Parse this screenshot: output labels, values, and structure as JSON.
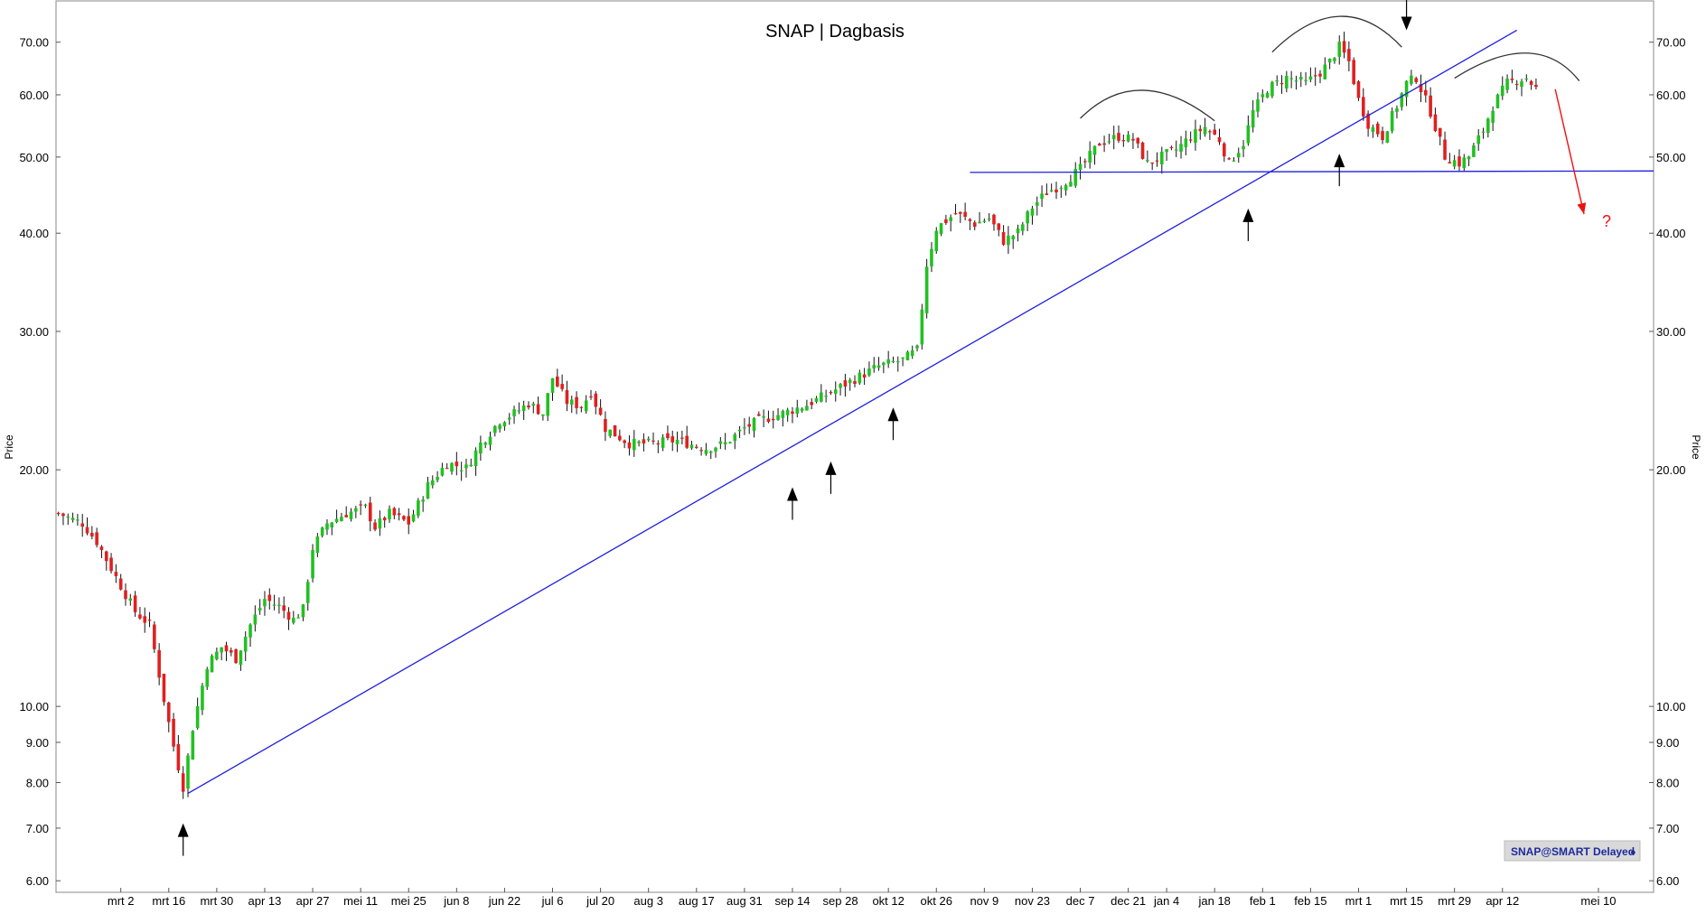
{
  "chart_data": {
    "type": "candlestick",
    "title": "SNAP | Dagbasis",
    "ylabel_left": "Price",
    "ylabel_right": "Price",
    "y_scale": "log",
    "ylim": [
      5.8,
      79
    ],
    "y_ticks": [
      "6.00",
      "7.00",
      "8.00",
      "9.00",
      "10.00",
      "20.00",
      "30.00",
      "40.00",
      "50.00",
      "60.00",
      "70.00"
    ],
    "y_tick_values": [
      6,
      7,
      8,
      9,
      10,
      20,
      30,
      40,
      50,
      60,
      70
    ],
    "x_ticks": [
      {
        "label": "mrt 2",
        "day": 2
      },
      {
        "label": "mrt 16",
        "day": 12
      },
      {
        "label": "mrt 30",
        "day": 22
      },
      {
        "label": "apr 13",
        "day": 32
      },
      {
        "label": "apr 27",
        "day": 42
      },
      {
        "label": "mei 11",
        "day": 52
      },
      {
        "label": "mei 25",
        "day": 62
      },
      {
        "label": "jun 8",
        "day": 72
      },
      {
        "label": "jun 22",
        "day": 82
      },
      {
        "label": "jul 6",
        "day": 92
      },
      {
        "label": "jul 20",
        "day": 102
      },
      {
        "label": "aug 3",
        "day": 112
      },
      {
        "label": "aug 17",
        "day": 122
      },
      {
        "label": "aug 31",
        "day": 132
      },
      {
        "label": "sep 14",
        "day": 142
      },
      {
        "label": "sep 28",
        "day": 152
      },
      {
        "label": "okt 12",
        "day": 162
      },
      {
        "label": "okt 26",
        "day": 172
      },
      {
        "label": "nov 9",
        "day": 182
      },
      {
        "label": "nov 23",
        "day": 192
      },
      {
        "label": "dec 7",
        "day": 202
      },
      {
        "label": "dec 21",
        "day": 212
      },
      {
        "label": "jan 4",
        "day": 220
      },
      {
        "label": "jan 18",
        "day": 230
      },
      {
        "label": "feb 1",
        "day": 240
      },
      {
        "label": "feb 15",
        "day": 250
      },
      {
        "label": "mrt 1",
        "day": 260
      },
      {
        "label": "mrt 15",
        "day": 270
      },
      {
        "label": "mrt 29",
        "day": 280
      },
      {
        "label": "apr 12",
        "day": 290
      },
      {
        "label": "mei 10",
        "day": 310
      }
    ],
    "x_range": [
      -11.5,
      321.5
    ],
    "anchors": [
      [
        -11,
        17.6
      ],
      [
        -6,
        17.1
      ],
      [
        -3,
        16.2
      ],
      [
        1,
        14.6
      ],
      [
        5,
        13.2
      ],
      [
        8,
        12.7
      ],
      [
        11,
        10.2
      ],
      [
        13,
        8.9
      ],
      [
        15,
        7.9
      ],
      [
        17,
        9.4
      ],
      [
        20,
        11.3
      ],
      [
        23,
        11.9
      ],
      [
        26,
        11.5
      ],
      [
        29,
        12.7
      ],
      [
        32,
        13.7
      ],
      [
        35,
        13.4
      ],
      [
        38,
        12.9
      ],
      [
        40,
        13.3
      ],
      [
        42,
        15.9
      ],
      [
        45,
        17.1
      ],
      [
        49,
        17.6
      ],
      [
        53,
        17.9
      ],
      [
        55,
        16.9
      ],
      [
        58,
        17.6
      ],
      [
        62,
        17.1
      ],
      [
        66,
        19.1
      ],
      [
        70,
        20.4
      ],
      [
        74,
        20.1
      ],
      [
        77,
        21.6
      ],
      [
        81,
        23.1
      ],
      [
        84,
        23.6
      ],
      [
        87,
        24.3
      ],
      [
        90,
        23.6
      ],
      [
        92,
        26.2
      ],
      [
        95,
        24.4
      ],
      [
        98,
        24.1
      ],
      [
        100,
        25.1
      ],
      [
        103,
        22.6
      ],
      [
        108,
        21.6
      ],
      [
        112,
        21.6
      ],
      [
        118,
        21.8
      ],
      [
        124,
        21.3
      ],
      [
        128,
        21.6
      ],
      [
        132,
        22.6
      ],
      [
        135,
        23.1
      ],
      [
        140,
        23.6
      ],
      [
        145,
        24.2
      ],
      [
        150,
        25.1
      ],
      [
        155,
        26.1
      ],
      [
        160,
        27.1
      ],
      [
        165,
        27.6
      ],
      [
        168,
        28.4
      ],
      [
        170,
        36.5
      ],
      [
        172,
        40.6
      ],
      [
        176,
        42.4
      ],
      [
        180,
        41.1
      ],
      [
        183,
        41.8
      ],
      [
        186,
        39.1
      ],
      [
        189,
        40.1
      ],
      [
        192,
        43.2
      ],
      [
        195,
        45.1
      ],
      [
        198,
        46.1
      ],
      [
        202,
        48.3
      ],
      [
        206,
        52.1
      ],
      [
        210,
        53.1
      ],
      [
        213,
        52.6
      ],
      [
        216,
        49.1
      ],
      [
        219,
        50.1
      ],
      [
        222,
        51.1
      ],
      [
        225,
        53.1
      ],
      [
        228,
        54.6
      ],
      [
        231,
        52.6
      ],
      [
        233,
        49.1
      ],
      [
        236,
        52.1
      ],
      [
        238,
        57.1
      ],
      [
        241,
        61.1
      ],
      [
        245,
        63.1
      ],
      [
        249,
        62.1
      ],
      [
        252,
        64.1
      ],
      [
        254,
        66.1
      ],
      [
        256,
        69.1
      ],
      [
        258,
        66.1
      ],
      [
        260,
        59.1
      ],
      [
        262,
        55.1
      ],
      [
        265,
        53.1
      ],
      [
        268,
        58.1
      ],
      [
        270,
        62.1
      ],
      [
        272,
        63.1
      ],
      [
        275,
        57.1
      ],
      [
        278,
        50.1
      ],
      [
        281,
        49.1
      ],
      [
        283,
        50.1
      ],
      [
        286,
        54.1
      ],
      [
        288,
        58.1
      ],
      [
        291,
        62.1
      ],
      [
        295,
        63.1
      ],
      [
        297,
        61.1
      ]
    ],
    "trendline": [
      [
        16,
        7.75
      ],
      [
        293,
        72.5
      ]
    ],
    "support_line": [
      [
        179,
        47.8
      ],
      [
        321.5,
        48.0
      ]
    ],
    "arcs": [
      {
        "from": [
          202,
          56
        ],
        "peak": [
          215,
          60.8
        ],
        "to": [
          230,
          55.6
        ]
      },
      {
        "from": [
          242,
          68
        ],
        "peak": [
          256,
          75.5
        ],
        "to": [
          269,
          69
        ]
      },
      {
        "from": [
          280,
          63
        ],
        "peak": [
          295,
          67.8
        ],
        "to": [
          306,
          62.5
        ]
      }
    ],
    "up_arrows": [
      [
        15,
        7.1
      ],
      [
        142,
        19.0
      ],
      [
        150,
        20.5
      ],
      [
        163,
        24.0
      ],
      [
        237,
        43.0
      ],
      [
        256,
        50.5
      ]
    ],
    "down_arrows": [
      [
        270,
        72.5
      ]
    ],
    "projection_arrow": {
      "from": [
        301,
        61
      ],
      "to": [
        307,
        42.3
      ],
      "label": "?"
    },
    "colors": {
      "up": "#22c022",
      "down": "#e02020",
      "trend": "#1f1fdd",
      "support": "#1f1fdd",
      "projection": "#ee1111",
      "arc": "#333333"
    },
    "grid": false,
    "legend": "none"
  },
  "badge": {
    "text": "SNAP@SMART Delayed"
  }
}
